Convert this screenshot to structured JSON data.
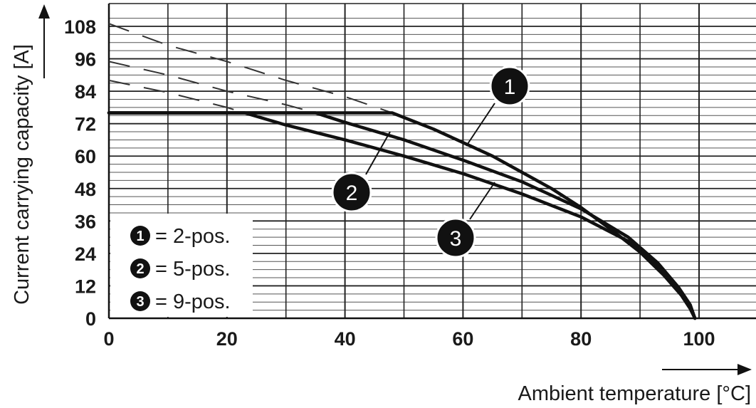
{
  "chart_data": {
    "type": "line",
    "title": "",
    "xlabel": "Ambient temperature [°C]",
    "ylabel": "Current carrying capacity [A]",
    "xlim": [
      0,
      105
    ],
    "ylim": [
      0,
      112
    ],
    "x_ticks": [
      0,
      20,
      40,
      60,
      80,
      100
    ],
    "x_tick_labels": [
      "0",
      "20",
      "40",
      "60",
      "80",
      "100"
    ],
    "y_ticks": [
      0,
      12,
      24,
      36,
      48,
      60,
      72,
      84,
      96,
      108
    ],
    "y_tick_labels": [
      "0",
      "12",
      "24",
      "36",
      "48",
      "60",
      "72",
      "84",
      "96",
      "108"
    ],
    "grid": true,
    "legend_position": "bottom-left",
    "series": [
      {
        "name": "2-pos.",
        "marker": "1",
        "solid": [
          [
            0,
            76
          ],
          [
            48,
            76
          ],
          [
            55,
            70
          ],
          [
            60,
            65
          ],
          [
            65,
            60
          ],
          [
            70,
            54
          ],
          [
            75,
            48
          ],
          [
            80,
            41
          ],
          [
            85,
            33
          ],
          [
            90,
            24.5
          ],
          [
            94,
            16
          ],
          [
            97,
            8.5
          ],
          [
            98.5,
            3.5
          ],
          [
            99.3,
            0
          ]
        ],
        "dashed": [
          [
            0,
            109
          ],
          [
            10,
            101
          ],
          [
            20,
            95
          ],
          [
            30,
            88
          ],
          [
            40,
            82
          ],
          [
            48,
            76
          ]
        ]
      },
      {
        "name": "5-pos.",
        "marker": "2",
        "solid": [
          [
            0,
            76
          ],
          [
            35,
            76
          ],
          [
            40,
            72.5
          ],
          [
            50,
            66
          ],
          [
            60,
            58.5
          ],
          [
            70,
            50.5
          ],
          [
            80,
            40.5
          ],
          [
            88,
            30
          ],
          [
            93,
            20.5
          ],
          [
            96.5,
            11.5
          ],
          [
            98.5,
            5
          ],
          [
            99.3,
            0
          ]
        ],
        "dashed": [
          [
            0,
            95
          ],
          [
            10,
            90
          ],
          [
            20,
            84
          ],
          [
            30,
            79
          ],
          [
            35,
            76
          ]
        ]
      },
      {
        "name": "9-pos.",
        "marker": "3",
        "solid": [
          [
            0,
            76
          ],
          [
            23,
            76
          ],
          [
            30,
            71.5
          ],
          [
            40,
            66
          ],
          [
            50,
            60
          ],
          [
            60,
            53.5
          ],
          [
            70,
            46
          ],
          [
            80,
            37.5
          ],
          [
            88,
            28.5
          ],
          [
            93,
            19.5
          ],
          [
            96.5,
            11
          ],
          [
            98.5,
            4.5
          ],
          [
            99.3,
            0
          ]
        ],
        "dashed": [
          [
            0,
            88
          ],
          [
            10,
            83.5
          ],
          [
            20,
            78
          ],
          [
            23,
            76
          ]
        ]
      }
    ],
    "callouts": [
      {
        "label": "1",
        "series": "2-pos."
      },
      {
        "label": "2",
        "series": "5-pos."
      },
      {
        "label": "3",
        "series": "9-pos."
      }
    ],
    "legend": [
      {
        "marker": "1",
        "text": "= 2-pos."
      },
      {
        "marker": "2",
        "text": "= 5-pos."
      },
      {
        "marker": "3",
        "text": "= 9-pos."
      }
    ]
  }
}
